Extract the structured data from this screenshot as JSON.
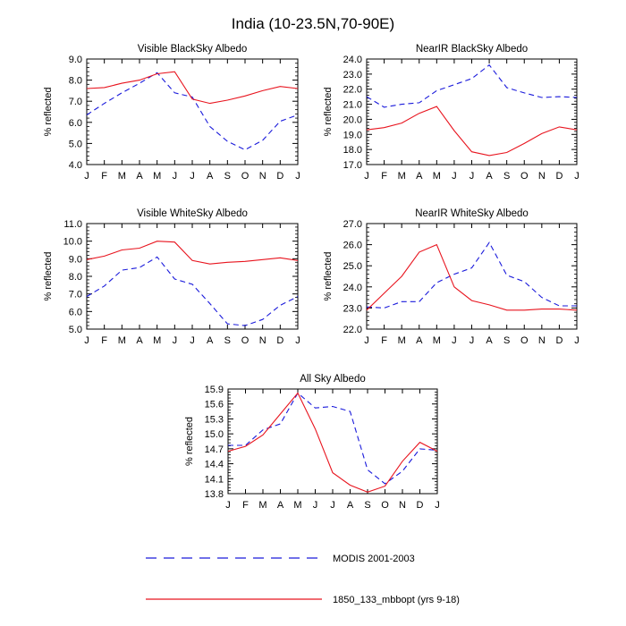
{
  "figure_title": "India (10-23.5N,70-90E)",
  "legend": [
    {
      "label": "MODIS 2001-2003",
      "color": "#1a1adb",
      "dash": true
    },
    {
      "label": "1850_133_mbbopt (yrs 9-18)",
      "color": "#e8141e",
      "dash": false
    }
  ],
  "chart_data": [
    {
      "type": "line",
      "title": "Visible BlackSky Albedo",
      "ylabel": "% reflected",
      "categories": [
        "J",
        "F",
        "M",
        "A",
        "M",
        "J",
        "J",
        "A",
        "S",
        "O",
        "N",
        "D",
        "J"
      ],
      "ylim": [
        4.0,
        9.0
      ],
      "yticks": [
        4.0,
        5.0,
        6.0,
        7.0,
        8.0,
        9.0
      ],
      "yticks_labels": [
        "4.0",
        "5.0",
        "6.0",
        "7.0",
        "8.0",
        "9.0"
      ],
      "series": [
        {
          "name": "MODIS 2001-2003",
          "values": [
            6.35,
            6.9,
            7.4,
            7.85,
            8.35,
            7.4,
            7.2,
            5.8,
            5.1,
            4.7,
            5.15,
            6.05,
            6.35
          ]
        },
        {
          "name": "1850_133_mbbopt (yrs 9-18)",
          "values": [
            7.6,
            7.65,
            7.85,
            8.0,
            8.3,
            8.4,
            7.1,
            6.9,
            7.05,
            7.25,
            7.5,
            7.7,
            7.6
          ]
        }
      ]
    },
    {
      "type": "line",
      "title": "NearIR BlackSky Albedo",
      "ylabel": "% reflected",
      "categories": [
        "J",
        "F",
        "M",
        "A",
        "M",
        "J",
        "J",
        "A",
        "S",
        "O",
        "N",
        "D",
        "J"
      ],
      "ylim": [
        17.0,
        24.0
      ],
      "yticks": [
        17.0,
        18.0,
        19.0,
        20.0,
        21.0,
        22.0,
        23.0,
        24.0
      ],
      "yticks_labels": [
        "17.0",
        "18.0",
        "19.0",
        "20.0",
        "21.0",
        "22.0",
        "23.0",
        "24.0"
      ],
      "series": [
        {
          "name": "MODIS 2001-2003",
          "values": [
            21.5,
            20.8,
            21.0,
            21.1,
            21.9,
            22.3,
            22.7,
            23.6,
            22.1,
            21.75,
            21.45,
            21.5,
            21.45
          ]
        },
        {
          "name": "1850_133_mbbopt (yrs 9-18)",
          "values": [
            19.3,
            19.45,
            19.75,
            20.4,
            20.85,
            19.25,
            17.85,
            17.6,
            17.8,
            18.4,
            19.05,
            19.5,
            19.3
          ]
        }
      ]
    },
    {
      "type": "line",
      "title": "Visible WhiteSky Albedo",
      "ylabel": "% reflected",
      "categories": [
        "J",
        "F",
        "M",
        "A",
        "M",
        "J",
        "J",
        "A",
        "S",
        "O",
        "N",
        "D",
        "J"
      ],
      "ylim": [
        5.0,
        11.0
      ],
      "yticks": [
        5.0,
        6.0,
        7.0,
        8.0,
        9.0,
        10.0,
        11.0
      ],
      "yticks_labels": [
        "5.0",
        "6.0",
        "7.0",
        "8.0",
        "9.0",
        "10.0",
        "11.0"
      ],
      "series": [
        {
          "name": "MODIS 2001-2003",
          "values": [
            6.85,
            7.45,
            8.35,
            8.5,
            9.1,
            7.85,
            7.55,
            6.45,
            5.3,
            5.2,
            5.55,
            6.35,
            6.85
          ]
        },
        {
          "name": "1850_133_mbbopt (yrs 9-18)",
          "values": [
            8.95,
            9.15,
            9.5,
            9.6,
            10.0,
            9.95,
            8.9,
            8.7,
            8.8,
            8.85,
            8.95,
            9.05,
            8.9
          ]
        }
      ]
    },
    {
      "type": "line",
      "title": "NearIR WhiteSky Albedo",
      "ylabel": "% reflected",
      "categories": [
        "J",
        "F",
        "M",
        "A",
        "M",
        "J",
        "J",
        "A",
        "S",
        "O",
        "N",
        "D",
        "J"
      ],
      "ylim": [
        22.0,
        27.0
      ],
      "yticks": [
        22.0,
        23.0,
        24.0,
        25.0,
        26.0,
        27.0
      ],
      "yticks_labels": [
        "22.0",
        "23.0",
        "24.0",
        "25.0",
        "26.0",
        "27.0"
      ],
      "series": [
        {
          "name": "MODIS 2001-2003",
          "values": [
            23.05,
            23.0,
            23.3,
            23.3,
            24.2,
            24.6,
            24.9,
            26.1,
            24.55,
            24.25,
            23.5,
            23.1,
            23.1
          ]
        },
        {
          "name": "1850_133_mbbopt (yrs 9-18)",
          "values": [
            22.9,
            23.7,
            24.5,
            25.65,
            26.0,
            24.0,
            23.35,
            23.15,
            22.9,
            22.9,
            22.95,
            22.95,
            22.9
          ]
        }
      ]
    },
    {
      "type": "line",
      "title": "All Sky Albedo",
      "ylabel": "% reflected",
      "categories": [
        "J",
        "F",
        "M",
        "A",
        "M",
        "J",
        "J",
        "A",
        "S",
        "O",
        "N",
        "D",
        "J"
      ],
      "ylim": [
        13.8,
        15.9
      ],
      "yticks": [
        13.8,
        14.1,
        14.4,
        14.7,
        15.0,
        15.3,
        15.6,
        15.9
      ],
      "yticks_labels": [
        "13.8",
        "14.1",
        "14.4",
        "14.7",
        "15.0",
        "15.3",
        "15.6",
        "15.9"
      ],
      "series": [
        {
          "name": "MODIS 2001-2003",
          "values": [
            14.77,
            14.77,
            15.08,
            15.2,
            15.82,
            15.52,
            15.55,
            15.45,
            14.28,
            14.0,
            14.25,
            14.7,
            14.67
          ]
        },
        {
          "name": "1850_133_mbbopt (yrs 9-18)",
          "values": [
            14.65,
            14.75,
            14.98,
            15.4,
            15.82,
            15.1,
            14.22,
            13.97,
            13.83,
            13.95,
            14.45,
            14.83,
            14.65
          ]
        }
      ]
    }
  ]
}
